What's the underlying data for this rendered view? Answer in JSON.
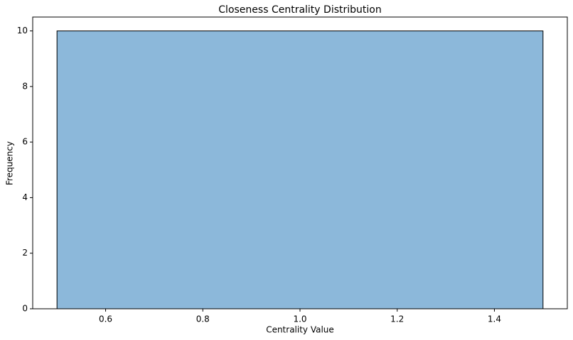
{
  "chart_data": {
    "type": "histogram",
    "title": "Closeness Centrality Distribution",
    "x_label": "Centrality Value",
    "y_label": "Frequency",
    "bins": [
      0.5,
      1.5
    ],
    "values": [
      10
    ],
    "color": "#8cb8da",
    "edgecolor": "#000000",
    "xlim": [
      0.45,
      1.55
    ],
    "ylim": [
      0,
      10.5
    ],
    "xticks": [
      0.6,
      0.8,
      {
        "value": 1,
        "label": "1.0"
      },
      1.2,
      1.4
    ],
    "yticks": [
      0,
      2,
      4,
      6,
      8,
      10
    ]
  }
}
